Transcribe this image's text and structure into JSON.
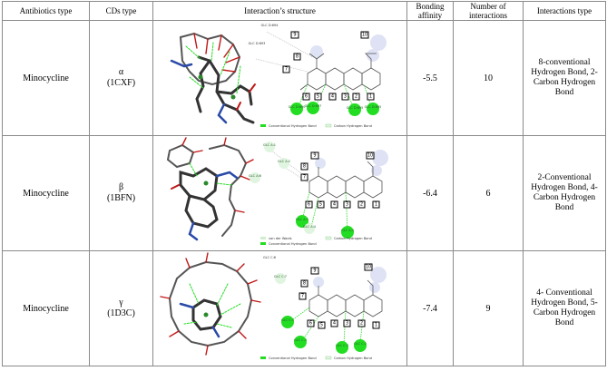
{
  "header": {
    "antibiotic": "Antibiotics type",
    "cds": "CDs type",
    "structure": "Interaction’s structure",
    "affinity": "Bonding affinity",
    "number": "Number of interactions",
    "itype": "Interactions type"
  },
  "rows": [
    {
      "antibiotic": "Minocycline",
      "cd_symbol": "α",
      "cd_code": "(1CXF)",
      "affinity": "-5.5",
      "number": "10",
      "itype": "8-conventional Hydrogen Bond, 2-Carbon Hydrogen Bond",
      "residues": [
        "GLC D:694",
        "GLC D:693",
        "GLC D:690",
        "GLC D:697",
        "GLC D:695"
      ],
      "legend": [
        "Conventional Hydrogen Bond",
        "Carbon Hydrogen Bond"
      ]
    },
    {
      "antibiotic": "Minocycline",
      "cd_symbol": "β",
      "cd_code": "(1BFN)",
      "affinity": "-6.4",
      "number": "6",
      "itype": "2-Conventional Hydrogen Bond, 4-Carbon Hydrogen Bond",
      "residues": [
        "GLC A:1",
        "GLC A:2",
        "GLC A:6",
        "GLC A:5",
        "GLC A:4"
      ],
      "legend": [
        "van der Waals",
        "Conventional Hydrogen Bond",
        "Carbon Hydrogen Bond"
      ]
    },
    {
      "antibiotic": "Minocycline",
      "cd_symbol": "γ",
      "cd_code": "(1D3C)",
      "affinity": "-7.4",
      "number": "9",
      "itype": "4- Conventional Hydrogen Bond, 5-Carbon Hydrogen Bond",
      "residues": [
        "GLC C:6",
        "GLC C:7",
        "GLC C:5",
        "GLC C:4",
        "GLC C:3",
        "GLC C:2"
      ],
      "legend": [
        "Conventional Hydrogen Bond",
        "Carbon Hydrogen Bond"
      ]
    }
  ],
  "colors": {
    "conventional_hbond": "#22dd22",
    "carbon_hbond": "#e0f5e0",
    "carbon_atom": "#4a4a4a",
    "oxygen_atom": "#c01818",
    "nitrogen_atom": "#2a4aa8"
  }
}
